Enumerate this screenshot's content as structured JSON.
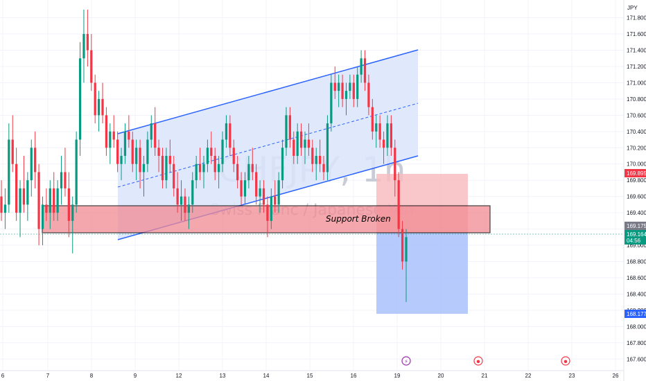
{
  "currency": "JPY",
  "watermark": {
    "symbol": "CHFJPY, 1h",
    "description": "Swiss Franc / Japanese Yen"
  },
  "annotation": {
    "label": "Support Broken"
  },
  "price_axis": {
    "ticks": [
      "171.800",
      "171.600",
      "171.400",
      "171.200",
      "171.000",
      "170.800",
      "170.600",
      "170.400",
      "170.200",
      "170.000",
      "169.800",
      "169.600",
      "169.400",
      "169.200",
      "169.000",
      "168.800",
      "168.600",
      "168.400",
      "168.200",
      "168.000",
      "167.800",
      "167.600"
    ],
    "tags": {
      "target_price": "169.895",
      "stop_price": "168.177",
      "resistance_price": "169.175",
      "last_price": "169.164",
      "countdown": "04:56"
    }
  },
  "time_axis": {
    "labels": [
      "6",
      "7",
      "8",
      "9",
      "12",
      "13",
      "14",
      "15",
      "16",
      "19",
      "20",
      "21",
      "22",
      "23",
      "26"
    ]
  },
  "event_icons": [
    {
      "name": "lightning-event-icon",
      "symbol": "⚡"
    },
    {
      "name": "economic-event-icon-1",
      "symbol": "●"
    },
    {
      "name": "economic-event-icon-2",
      "symbol": "●"
    }
  ],
  "colors": {
    "up": "#089981",
    "down": "#f23645",
    "channel_line": "#2962ff",
    "channel_fill": "#dbe4fb",
    "zone_fill": "#f28a93",
    "target_box": "#f8bcc0",
    "stop_box": "#a9c2fb",
    "price_tag_red": "#f23645",
    "price_tag_blue": "#2962ff",
    "price_tag_gray": "#787b86"
  },
  "chart_data": {
    "type": "candlestick",
    "symbol": "CHFJPY",
    "timeframe": "1h",
    "y_range": [
      167.5,
      171.95
    ],
    "x_range": [
      "6",
      "26"
    ],
    "channel": {
      "upper": [
        [
          170.38,
          0
        ],
        [
          171.4,
          1
        ]
      ],
      "lower": [
        [
          169.15,
          0
        ],
        [
          170.1,
          1
        ]
      ]
    },
    "support_zone": [
      169.12,
      169.52
    ],
    "position": {
      "entry": 169.15,
      "target_top": 169.9,
      "stop_bottom": 168.18
    },
    "last_price": 169.164,
    "candles": [
      [
        169.6,
        169.8,
        169.3,
        169.4
      ],
      [
        169.4,
        169.7,
        169.2,
        169.5
      ],
      [
        169.5,
        170.5,
        169.4,
        170.3
      ],
      [
        170.3,
        170.6,
        169.9,
        170.0
      ],
      [
        170.0,
        170.2,
        169.3,
        169.4
      ],
      [
        169.4,
        169.8,
        169.1,
        169.7
      ],
      [
        169.7,
        170.1,
        169.4,
        169.5
      ],
      [
        169.5,
        169.9,
        169.3,
        169.8
      ],
      [
        169.8,
        170.3,
        169.6,
        170.2
      ],
      [
        170.2,
        170.4,
        169.7,
        169.9
      ],
      [
        169.9,
        170.0,
        169.0,
        169.2
      ],
      [
        169.2,
        169.6,
        169.0,
        169.5
      ],
      [
        169.5,
        169.7,
        169.3,
        169.4
      ],
      [
        169.4,
        169.8,
        169.2,
        169.7
      ],
      [
        169.7,
        169.9,
        169.3,
        169.4
      ],
      [
        169.4,
        169.8,
        169.3,
        169.7
      ],
      [
        169.7,
        170.1,
        169.5,
        169.9
      ],
      [
        169.9,
        170.2,
        169.6,
        169.7
      ],
      [
        169.7,
        169.9,
        169.1,
        169.3
      ],
      [
        169.3,
        169.6,
        168.9,
        169.5
      ],
      [
        169.5,
        170.4,
        169.4,
        170.3
      ],
      [
        170.3,
        171.5,
        170.1,
        171.3
      ],
      [
        171.3,
        171.9,
        171.0,
        171.6
      ],
      [
        171.6,
        171.9,
        171.2,
        171.4
      ],
      [
        171.4,
        171.6,
        170.9,
        171.0
      ],
      [
        171.0,
        171.1,
        170.5,
        170.6
      ],
      [
        170.6,
        170.9,
        170.4,
        170.8
      ],
      [
        170.8,
        171.0,
        170.5,
        170.6
      ],
      [
        170.6,
        170.7,
        170.1,
        170.2
      ],
      [
        170.2,
        170.5,
        170.0,
        170.4
      ],
      [
        170.4,
        170.6,
        170.2,
        170.3
      ],
      [
        170.3,
        170.4,
        169.9,
        170.0
      ],
      [
        170.0,
        170.2,
        169.8,
        170.1
      ],
      [
        170.1,
        170.5,
        170.0,
        170.4
      ],
      [
        170.4,
        170.6,
        170.2,
        170.3
      ],
      [
        170.3,
        170.4,
        169.9,
        170.0
      ],
      [
        170.0,
        170.3,
        169.8,
        170.2
      ],
      [
        170.2,
        170.3,
        169.7,
        169.9
      ],
      [
        169.9,
        170.1,
        169.6,
        170.0
      ],
      [
        170.0,
        170.4,
        169.9,
        170.3
      ],
      [
        170.3,
        170.6,
        170.2,
        170.5
      ],
      [
        170.5,
        170.7,
        170.1,
        170.2
      ],
      [
        170.2,
        170.3,
        169.9,
        170.1
      ],
      [
        170.1,
        170.2,
        169.7,
        169.8
      ],
      [
        169.8,
        170.2,
        169.7,
        170.1
      ],
      [
        170.1,
        170.3,
        169.9,
        170.0
      ],
      [
        170.0,
        170.1,
        169.6,
        169.7
      ],
      [
        169.7,
        169.9,
        169.4,
        169.5
      ],
      [
        169.5,
        169.8,
        169.3,
        169.6
      ],
      [
        169.6,
        169.7,
        169.3,
        169.4
      ],
      [
        169.4,
        169.6,
        169.2,
        169.5
      ],
      [
        169.5,
        169.9,
        169.4,
        169.8
      ],
      [
        169.8,
        170.1,
        169.7,
        170.0
      ],
      [
        170.0,
        170.2,
        169.8,
        169.9
      ],
      [
        169.9,
        170.1,
        169.7,
        170.0
      ],
      [
        170.0,
        170.3,
        169.9,
        170.2
      ],
      [
        170.2,
        170.4,
        170.0,
        170.1
      ],
      [
        170.1,
        170.2,
        169.8,
        169.9
      ],
      [
        169.9,
        170.1,
        169.7,
        170.0
      ],
      [
        170.0,
        170.4,
        169.9,
        170.3
      ],
      [
        170.3,
        170.6,
        170.2,
        170.5
      ],
      [
        170.5,
        170.6,
        170.1,
        170.2
      ],
      [
        170.2,
        170.3,
        169.9,
        170.0
      ],
      [
        170.0,
        170.1,
        169.7,
        169.8
      ],
      [
        169.8,
        169.9,
        169.5,
        169.6
      ],
      [
        169.6,
        169.9,
        169.5,
        169.8
      ],
      [
        169.8,
        170.1,
        169.7,
        170.0
      ],
      [
        170.0,
        170.2,
        169.8,
        169.9
      ],
      [
        169.9,
        170.0,
        169.5,
        169.6
      ],
      [
        169.6,
        169.8,
        169.4,
        169.7
      ],
      [
        169.7,
        169.8,
        169.4,
        169.5
      ],
      [
        169.5,
        169.6,
        169.1,
        169.3
      ],
      [
        169.3,
        169.7,
        169.2,
        169.6
      ],
      [
        169.6,
        169.8,
        169.4,
        169.5
      ],
      [
        169.5,
        169.9,
        169.4,
        169.8
      ],
      [
        169.8,
        170.3,
        169.7,
        170.2
      ],
      [
        170.2,
        170.7,
        170.1,
        170.6
      ],
      [
        170.6,
        170.7,
        170.2,
        170.3
      ],
      [
        170.3,
        170.4,
        170.0,
        170.1
      ],
      [
        170.1,
        170.5,
        170.0,
        170.4
      ],
      [
        170.4,
        170.5,
        170.1,
        170.2
      ],
      [
        170.2,
        170.4,
        170.0,
        170.3
      ],
      [
        170.3,
        170.5,
        170.1,
        170.2
      ],
      [
        170.2,
        170.3,
        169.9,
        170.0
      ],
      [
        170.0,
        170.2,
        169.8,
        170.1
      ],
      [
        170.1,
        170.3,
        169.9,
        170.0
      ],
      [
        170.0,
        170.1,
        169.8,
        169.9
      ],
      [
        169.9,
        170.6,
        169.8,
        170.5
      ],
      [
        170.5,
        171.1,
        170.4,
        171.0
      ],
      [
        171.0,
        171.2,
        170.8,
        170.9
      ],
      [
        170.9,
        171.1,
        170.7,
        171.0
      ],
      [
        171.0,
        171.1,
        170.7,
        170.8
      ],
      [
        170.8,
        171.0,
        170.6,
        170.9
      ],
      [
        170.9,
        171.1,
        170.8,
        171.0
      ],
      [
        171.0,
        171.1,
        170.7,
        170.8
      ],
      [
        170.8,
        171.2,
        170.7,
        171.1
      ],
      [
        171.1,
        171.4,
        171.0,
        171.3
      ],
      [
        171.3,
        171.4,
        170.9,
        171.0
      ],
      [
        171.0,
        171.1,
        170.6,
        170.7
      ],
      [
        170.7,
        170.8,
        170.3,
        170.4
      ],
      [
        170.4,
        170.6,
        170.2,
        170.5
      ],
      [
        170.5,
        170.6,
        170.2,
        170.3
      ],
      [
        170.3,
        170.4,
        170.0,
        170.2
      ],
      [
        170.2,
        170.6,
        170.1,
        170.5
      ],
      [
        170.5,
        170.6,
        170.1,
        170.2
      ],
      [
        170.2,
        170.3,
        169.6,
        169.8
      ],
      [
        169.8,
        169.9,
        169.1,
        169.2
      ],
      [
        169.2,
        169.3,
        168.7,
        168.8
      ],
      [
        168.8,
        169.2,
        168.3,
        169.1
      ]
    ]
  }
}
